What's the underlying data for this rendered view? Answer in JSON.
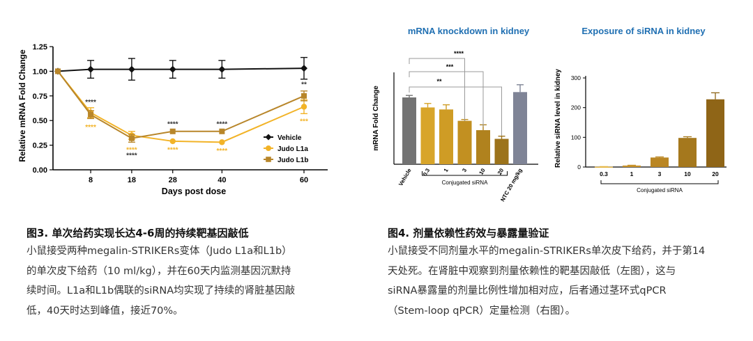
{
  "colors": {
    "vehicle": "#111111",
    "l1a": "#F2B327",
    "l1b": "#B8862A",
    "title_blue": "#1F6FB2",
    "bar_vehicle": "#737373",
    "bar_ntc": "#7F8496"
  },
  "chart_data": [
    {
      "type": "line",
      "title": "",
      "xlabel": "Days post dose",
      "ylabel": "Relative mRNA Fold Change",
      "x": [
        0,
        8,
        18,
        28,
        40,
        60
      ],
      "xticks": [
        "8",
        "18",
        "28",
        "40",
        "60"
      ],
      "yticks": [
        "0.00",
        "0.25",
        "0.50",
        "0.75",
        "1.00",
        "1.25"
      ],
      "ylim": [
        0,
        1.25
      ],
      "legend_position": "right",
      "series": [
        {
          "name": "Vehicle",
          "key": "vehicle",
          "values": [
            1.0,
            1.02,
            1.02,
            1.02,
            1.02,
            1.03
          ],
          "errors": [
            0,
            0.09,
            0.11,
            0.09,
            0.09,
            0.11
          ]
        },
        {
          "name": "Judo L1a",
          "key": "l1a",
          "values": [
            1.0,
            0.58,
            0.35,
            0.29,
            0.28,
            0.64
          ],
          "errors": [
            0,
            0.05,
            0.04,
            0,
            0,
            0.07
          ]
        },
        {
          "name": "Judo L1b",
          "key": "l1b",
          "values": [
            1.0,
            0.56,
            0.32,
            0.39,
            0.39,
            0.75
          ],
          "errors": [
            0,
            0.04,
            0.04,
            0,
            0,
            0.05
          ]
        }
      ],
      "significance_above": [
        {
          "x": 8,
          "label": "****"
        },
        {
          "x": 28,
          "label": "****"
        },
        {
          "x": 40,
          "label": "****"
        },
        {
          "x": 60,
          "label": "**"
        }
      ],
      "significance_below": [
        {
          "x": 8,
          "label": "****"
        },
        {
          "x": 18,
          "label": "****"
        },
        {
          "x": 28,
          "label": "****"
        },
        {
          "x": 40,
          "label": "****"
        },
        {
          "x": 60,
          "label": "***"
        }
      ],
      "significance_18_above_l1b": "****"
    },
    {
      "type": "bar",
      "title": "mRNA knockdown in kidney",
      "xlabel": "Conjugated siRNA",
      "ylabel": "mRNA Fold Change",
      "categories": [
        "Vehicle",
        "0.3",
        "1",
        "3",
        "10",
        "20",
        "NTC 20 mg/kg"
      ],
      "values": [
        1.0,
        0.85,
        0.82,
        0.65,
        0.51,
        0.38,
        1.08
      ],
      "errors": [
        0.03,
        0.06,
        0.07,
        0.02,
        0.08,
        0.04,
        0.11
      ],
      "bar_colors": [
        "#737373",
        "#D8A52A",
        "#CF9C25",
        "#C29021",
        "#B0821E",
        "#9C731B",
        "#7F8496"
      ],
      "brackets": [
        {
          "from": "Vehicle",
          "to": "3",
          "label": "**"
        },
        {
          "from": "Vehicle",
          "to": "10",
          "label": "***"
        },
        {
          "from": "Vehicle",
          "to": "20",
          "label": "****"
        }
      ]
    },
    {
      "type": "bar",
      "title": "Exposure of siRNA in kidney",
      "xlabel": "Conjugated siRNA",
      "ylabel": "Relative siRNA level in kidney",
      "categories": [
        "0.3",
        "1",
        "3",
        "10",
        "20"
      ],
      "values": [
        1,
        5,
        32,
        98,
        228
      ],
      "errors": [
        0.5,
        1,
        2,
        4,
        22
      ],
      "yticks": [
        "0",
        "100",
        "200",
        "300"
      ],
      "ylim": [
        0,
        300
      ],
      "bar_colors": [
        "#E5B94B",
        "#C9932A",
        "#BA8623",
        "#A5781D",
        "#8F6517"
      ]
    }
  ],
  "captions": {
    "left": {
      "title": "图3. 单次给药实现长达4-6周的持续靶基因敲低",
      "lines": [
        "小鼠接受两种megalin-STRIKERs变体（Judo L1a和L1b）",
        "的单次皮下给药（10 ml/kg），并在60天内监测基因沉默持",
        "续时间。L1a和L1b偶联的siRNA均实现了持续的肾脏基因敲",
        "低，40天时达到峰值，接近70%。"
      ]
    },
    "right": {
      "title": "图4. 剂量依赖性药效与暴露量验证",
      "lines": [
        "小鼠接受不同剂量水平的megalin-STRIKERs单次皮下给药，并于第14",
        "天处死。在肾脏中观察到剂量依赖性的靶基因敲低（左图），这与",
        "siRNA暴露量的剂量比例性增加相对应，后者通过茎环式qPCR",
        "（Stem-loop qPCR）定量检测（右图）。"
      ]
    }
  }
}
